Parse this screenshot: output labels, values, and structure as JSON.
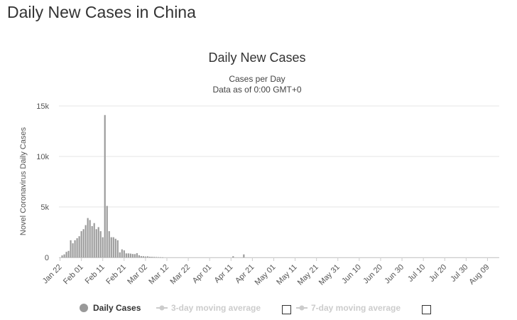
{
  "page": {
    "title": "Daily New Cases in China"
  },
  "chart_data": {
    "type": "bar",
    "title": "Daily New Cases",
    "subtitle": "Cases per Day",
    "subtitle2": "Data as of 0:00 GMT+0",
    "xlabel": "",
    "ylabel": "Novel Coronavirus Daily Cases",
    "ylim": [
      0,
      15000
    ],
    "yticks": [
      0,
      5000,
      10000,
      15000
    ],
    "ytick_labels": [
      "0",
      "5k",
      "10k",
      "15k"
    ],
    "grid": true,
    "start_date": "Jan 22",
    "total_days": 206,
    "xtick_labels": [
      "Jan 22",
      "Feb 01",
      "Feb 11",
      "Feb 21",
      "Mar 02",
      "Mar 12",
      "Mar 22",
      "Apr 01",
      "Apr 11",
      "Apr 21",
      "May 01",
      "May 11",
      "May 21",
      "May 31",
      "Jun 10",
      "Jun 20",
      "Jun 30",
      "Jul 10",
      "Jul 20",
      "Jul 30",
      "Aug 09"
    ],
    "bar_color": "#999999",
    "series": [
      {
        "name": "Daily Cases",
        "x_index": [
          1,
          2,
          3,
          4,
          5,
          6,
          7,
          8,
          9,
          10,
          11,
          12,
          13,
          14,
          15,
          16,
          17,
          18,
          19,
          20,
          21,
          22,
          23,
          24,
          25,
          26,
          27,
          28,
          29,
          30,
          31,
          32,
          33,
          34,
          35,
          36,
          37,
          38,
          39,
          40,
          41,
          42,
          43,
          44,
          45,
          46,
          47,
          48,
          81,
          86
        ],
        "values": [
          200,
          300,
          550,
          650,
          1700,
          1400,
          1700,
          1900,
          2100,
          2600,
          2800,
          3200,
          3900,
          3700,
          3100,
          3400,
          2800,
          3000,
          2600,
          2000,
          14100,
          5100,
          2600,
          2000,
          2000,
          1850,
          1700,
          500,
          800,
          700,
          400,
          400,
          380,
          340,
          330,
          420,
          210,
          130,
          120,
          90,
          110,
          70,
          60,
          50,
          40,
          30,
          20,
          10,
          120,
          300
        ]
      }
    ],
    "legend": {
      "placement": "bottom-center",
      "items": [
        {
          "label": "Daily Cases",
          "color": "#999999",
          "active": true
        },
        {
          "label": "3-day moving average",
          "color": "#cccccc",
          "active": false
        },
        {
          "label": "7-day moving average",
          "color": "#cccccc",
          "active": false
        }
      ]
    }
  }
}
